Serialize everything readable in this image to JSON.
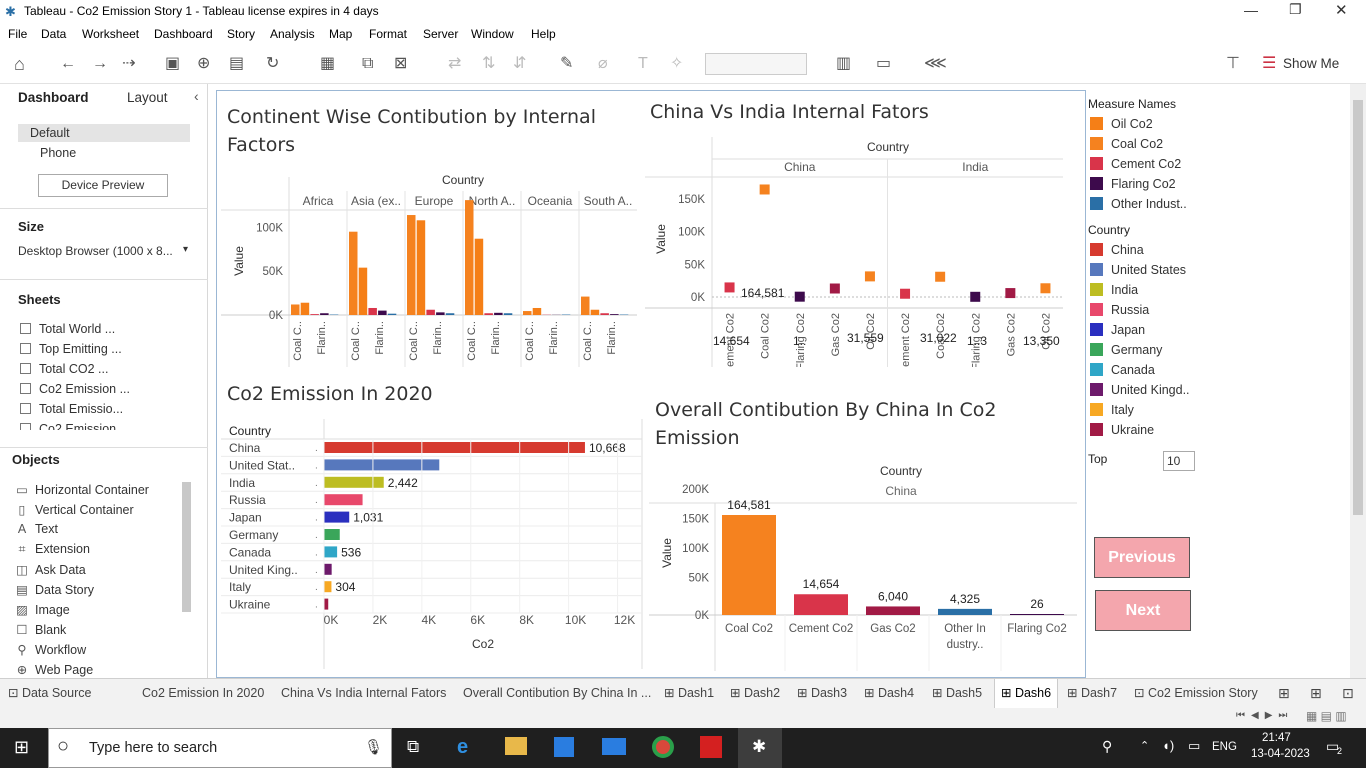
{
  "window": {
    "title": "Tableau - Co2 Emission Story 1 - Tableau license expires in 4 days"
  },
  "menu": [
    "File",
    "Data",
    "Worksheet",
    "Dashboard",
    "Story",
    "Analysis",
    "Map",
    "Format",
    "Server",
    "Window",
    "Help"
  ],
  "toolbar": {
    "show_me": "Show Me"
  },
  "left": {
    "tab_dashboard": "Dashboard",
    "tab_layout": "Layout",
    "device_default": "Default",
    "device_phone": "Phone",
    "device_preview": "Device Preview",
    "size_label": "Size",
    "size_value": "Desktop Browser (1000 x 8...",
    "sheets_label": "Sheets",
    "sheets": [
      "Total World ...",
      "Top Emitting ...",
      "Total CO2 ...",
      "Co2 Emission ...",
      "Total Emissio...",
      "Co2 Emission"
    ],
    "objects_label": "Objects",
    "objects": [
      "Horizontal Container",
      "Vertical Container",
      "Text",
      "Extension",
      "Ask Data",
      "Data Story",
      "Image",
      "Blank",
      "Workflow",
      "Web Page"
    ]
  },
  "charts": {
    "c1": {
      "title_line1": "Continent Wise Contibution by Internal",
      "title_line2": "Factors",
      "header": "Country",
      "ylabel": "Value",
      "yticks": [
        "100K",
        "50K",
        "0K"
      ],
      "continents": [
        "Africa",
        "Asia (ex..",
        "Europe",
        "North A..",
        "Oceania",
        "South A.."
      ],
      "xlabels": [
        "Coal C..",
        "Flarin.."
      ]
    },
    "c2": {
      "title": "China Vs India Internal Fators",
      "header": "Country",
      "ylabel": "Value",
      "yticks": [
        "150K",
        "100K",
        "50K",
        "0K"
      ],
      "countries": [
        "China",
        "India"
      ],
      "xcats": [
        "Cement Co2",
        "Coal Co2",
        "Flaring Co2",
        "Gas Co2",
        "Oil Co2"
      ],
      "labels": {
        "china_coal": "164,581",
        "china_cement": "14,654",
        "china_flaring": "1..",
        "china_oil": "31,559",
        "india_coal": "31,022",
        "india_flaring": "1..3",
        "india_oil": "13,350"
      }
    },
    "c3": {
      "title": "Co2 Emission In 2020",
      "col_header": "Country",
      "xlabel": "Co2",
      "xticks": [
        "0K",
        "2K",
        "4K",
        "6K",
        "8K",
        "10K",
        "12K"
      ],
      "rows": [
        "China",
        "United Stat..",
        "India",
        "Russia",
        "Japan",
        "Germany",
        "Canada",
        "United King..",
        "Italy",
        "Ukraine"
      ],
      "labels": [
        "10,668",
        "",
        "2,442",
        "",
        "1,031",
        "",
        "536",
        "",
        "304",
        ""
      ]
    },
    "c4": {
      "title_line1": "Overall Contibution By China In Co2",
      "title_line2": "Emission",
      "header": "Country",
      "sub": "China",
      "ylabel": "Value",
      "yticks": [
        "200K",
        "150K",
        "100K",
        "50K",
        "0K"
      ],
      "cats": [
        "Coal Co2",
        "Cement Co2",
        "Gas Co2",
        "Other In dustry..",
        "Flaring Co2"
      ],
      "labels": [
        "164,581",
        "14,654",
        "6,040",
        "4,325",
        "26"
      ]
    }
  },
  "chart_data": [
    {
      "type": "bar",
      "title": "Continent Wise Contibution by Internal Factors",
      "ylabel": "Value",
      "categories": [
        "Africa",
        "Asia (ex..",
        "Europe",
        "North A..",
        "Oceania",
        "South A.."
      ],
      "series": [
        {
          "name": "Coal Co2",
          "values": [
            12000,
            95000,
            114000,
            131000,
            4500,
            21000
          ]
        },
        {
          "name": "Oil Co2",
          "values": [
            14000,
            54000,
            108000,
            87000,
            8000,
            6000
          ]
        },
        {
          "name": "Cement Co2",
          "values": [
            1000,
            8000,
            6000,
            2000,
            300,
            2000
          ]
        },
        {
          "name": "Flaring Co2",
          "values": [
            2000,
            5000,
            3000,
            2500,
            200,
            1000
          ]
        },
        {
          "name": "Other Indust..",
          "values": [
            500,
            1500,
            2000,
            2000,
            500,
            500
          ]
        }
      ],
      "ylim": [
        0,
        130000
      ]
    },
    {
      "type": "scatter",
      "title": "China Vs India Internal Fators",
      "ylabel": "Value",
      "categories": [
        "Cement Co2",
        "Coal Co2",
        "Flaring Co2",
        "Gas Co2",
        "Oil Co2"
      ],
      "series": [
        {
          "name": "China",
          "values": [
            14654,
            164581,
            500,
            13000,
            31559
          ]
        },
        {
          "name": "India",
          "values": [
            5000,
            31022,
            300,
            6000,
            13350
          ]
        }
      ],
      "ylim": [
        0,
        180000
      ]
    },
    {
      "type": "bar",
      "title": "Co2 Emission In 2020",
      "xlabel": "Co2",
      "categories": [
        "China",
        "United Stat..",
        "India",
        "Russia",
        "Japan",
        "Germany",
        "Canada",
        "United King..",
        "Italy",
        "Ukraine"
      ],
      "values": [
        10668,
        4713,
        2442,
        1577,
        1031,
        644,
        536,
        313,
        304,
        173
      ],
      "xlim": [
        0,
        13000
      ]
    },
    {
      "type": "bar",
      "title": "Overall Contibution By China In Co2 Emission",
      "ylabel": "Value",
      "categories": [
        "Coal Co2",
        "Cement Co2",
        "Gas Co2",
        "Other In dustry..",
        "Flaring Co2"
      ],
      "values": [
        164581,
        14654,
        6040,
        4325,
        26
      ],
      "ylim": [
        0,
        200000
      ]
    }
  ],
  "legend": {
    "measure_title": "Measure Names",
    "measures": [
      {
        "name": "Oil Co2",
        "color": "#f57f17"
      },
      {
        "name": "Coal Co2",
        "color": "#f5821f"
      },
      {
        "name": "Cement Co2",
        "color": "#d9344a"
      },
      {
        "name": "Flaring Co2",
        "color": "#3d0a4c"
      },
      {
        "name": "Other Indust..",
        "color": "#2a6fa6"
      }
    ],
    "country_title": "Country",
    "countries": [
      {
        "name": "China",
        "color": "#d63a2f"
      },
      {
        "name": "United States",
        "color": "#5778bd"
      },
      {
        "name": "India",
        "color": "#bdbd22"
      },
      {
        "name": "Russia",
        "color": "#e8486b"
      },
      {
        "name": "Japan",
        "color": "#2a2fbf"
      },
      {
        "name": "Germany",
        "color": "#3aa65a"
      },
      {
        "name": "Canada",
        "color": "#2fa6c7"
      },
      {
        "name": "United Kingd..",
        "color": "#6d1a6b"
      },
      {
        "name": "Italy",
        "color": "#f7a823"
      },
      {
        "name": "Ukraine",
        "color": "#a11a45"
      }
    ],
    "top_label": "Top",
    "top_value": "10",
    "prev": "Previous",
    "next": "Next"
  },
  "tabs": [
    "Data Source",
    "Co2 Emission In 2020",
    "China Vs India Internal Fators",
    "Overall Contibution By China In ...",
    "Dash1",
    "Dash2",
    "Dash3",
    "Dash4",
    "Dash5",
    "Dash6",
    "Dash7",
    "Co2 Emission Story"
  ],
  "taskbar": {
    "search": "Type here to search",
    "lang": "ENG",
    "time": "21:47",
    "date": "13-04-2023",
    "notif": "2"
  }
}
